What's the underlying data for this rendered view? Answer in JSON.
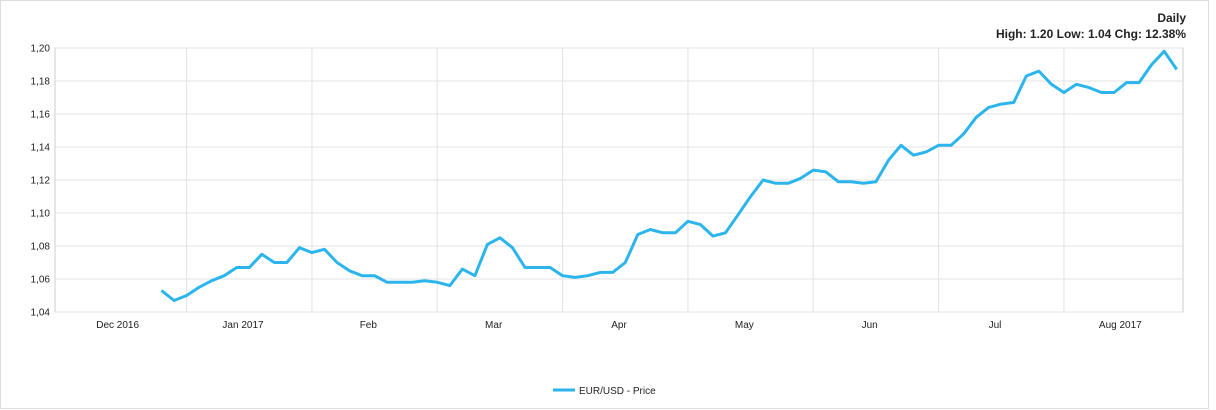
{
  "chart_data": {
    "type": "line",
    "title": "Daily",
    "subtitle": "High: 1.20 Low: 1.04 Chg: 12.38%",
    "categories": [
      null,
      null,
      null,
      null,
      null,
      "Dec 2016",
      null,
      null,
      null,
      null,
      null,
      null,
      null,
      null,
      null,
      "Jan 2017",
      null,
      null,
      null,
      null,
      null,
      null,
      null,
      null,
      null,
      "Feb",
      null,
      null,
      null,
      null,
      null,
      null,
      null,
      null,
      null,
      "Mar",
      null,
      null,
      null,
      null,
      null,
      null,
      null,
      null,
      null,
      "Apr",
      null,
      null,
      null,
      null,
      null,
      null,
      null,
      null,
      null,
      "May",
      null,
      null,
      null,
      null,
      null,
      null,
      null,
      null,
      null,
      "Jun",
      null,
      null,
      null,
      null,
      null,
      null,
      null,
      null,
      null,
      "Jul",
      null,
      null,
      null,
      null,
      null,
      null,
      null,
      null,
      null,
      "Aug 2017",
      null,
      null,
      null,
      null
    ],
    "series": [
      {
        "name": "EUR/USD - Price",
        "color": "#2bb5ec",
        "values": [
          null,
          null,
          null,
          null,
          null,
          null,
          null,
          null,
          1.053,
          1.047,
          1.05,
          1.055,
          1.059,
          1.062,
          1.067,
          1.067,
          1.075,
          1.07,
          1.07,
          1.079,
          1.076,
          1.078,
          1.07,
          1.065,
          1.062,
          1.062,
          1.058,
          1.058,
          1.058,
          1.059,
          1.058,
          1.056,
          1.066,
          1.062,
          1.081,
          1.085,
          1.079,
          1.067,
          1.067,
          1.067,
          1.062,
          1.061,
          1.062,
          1.064,
          1.064,
          1.07,
          1.087,
          1.09,
          1.088,
          1.088,
          1.095,
          1.093,
          1.086,
          1.088,
          1.099,
          1.11,
          1.12,
          1.118,
          1.118,
          1.121,
          1.126,
          1.125,
          1.119,
          1.119,
          1.118,
          1.119,
          1.132,
          1.141,
          1.135,
          1.137,
          1.141,
          1.141,
          1.148,
          1.158,
          1.164,
          1.166,
          1.167,
          1.183,
          1.186,
          1.178,
          1.173,
          1.178,
          1.176,
          1.173,
          1.173,
          1.179,
          1.179,
          1.19,
          1.198,
          1.187
        ]
      }
    ],
    "ylim": [
      1.04,
      1.2
    ],
    "yticks": [
      {
        "value": 1.04,
        "label": "1,04"
      },
      {
        "value": 1.06,
        "label": "1,06"
      },
      {
        "value": 1.08,
        "label": "1,08"
      },
      {
        "value": 1.1,
        "label": "1,10"
      },
      {
        "value": 1.12,
        "label": "1,12"
      },
      {
        "value": 1.14,
        "label": "1,14"
      },
      {
        "value": 1.16,
        "label": "1,16"
      },
      {
        "value": 1.18,
        "label": "1,18"
      },
      {
        "value": 1.2,
        "label": "1,20"
      }
    ],
    "grid": true,
    "legend": "bottom"
  }
}
